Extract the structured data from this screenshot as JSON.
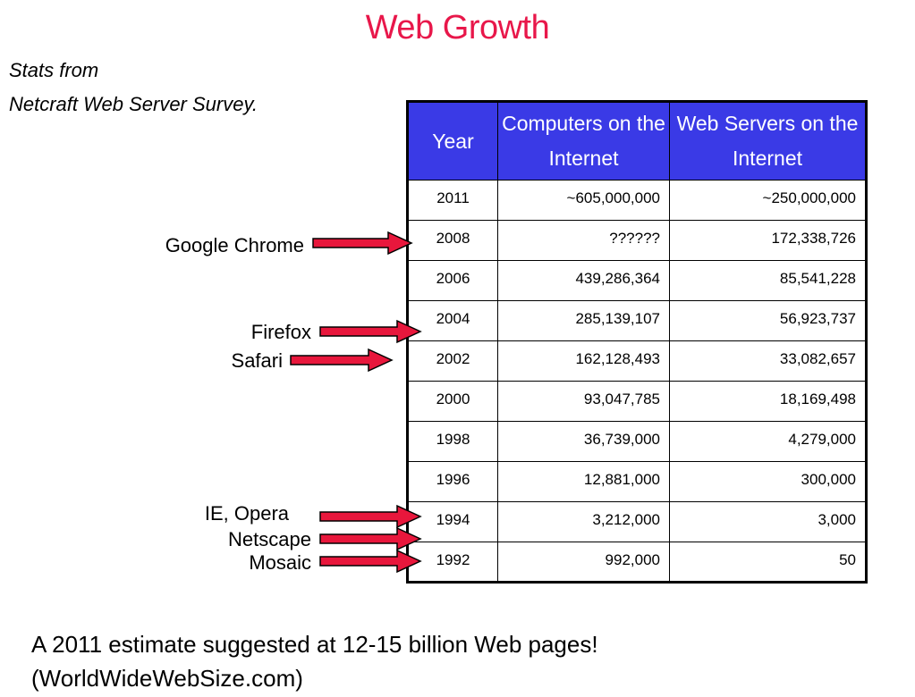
{
  "title": "Web Growth",
  "subtitle_lines": [
    "Stats from",
    "Netcraft Web Server Survey."
  ],
  "table": {
    "headers": [
      "Year",
      "Computers on the Internet",
      "Web Servers on the Internet"
    ],
    "rows": [
      [
        "2011",
        "~605,000,000",
        "~250,000,000"
      ],
      [
        "2008",
        "??????",
        "172,338,726"
      ],
      [
        "2006",
        "439,286,364",
        "85,541,228"
      ],
      [
        "2004",
        "285,139,107",
        "56,923,737"
      ],
      [
        "2002",
        "162,128,493",
        "33,082,657"
      ],
      [
        "2000",
        "93,047,785",
        "18,169,498"
      ],
      [
        "1998",
        "36,739,000",
        "4,279,000"
      ],
      [
        "1996",
        "12,881,000",
        "300,000"
      ],
      [
        "1994",
        "3,212,000",
        "3,000"
      ],
      [
        "1992",
        "992,000",
        "50"
      ]
    ]
  },
  "annotations": [
    "Google Chrome",
    "Firefox",
    "Safari",
    "IE, Opera",
    "Netscape",
    "Mosaic"
  ],
  "arrow_color": "#e8173c",
  "footer_lines": [
    "A 2011 estimate suggested at 12-15 billion Web pages!",
    "(WorldWideWebSize.com)"
  ]
}
